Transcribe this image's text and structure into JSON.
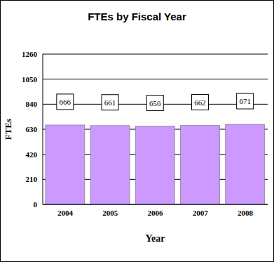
{
  "chart_data": {
    "type": "bar",
    "title": "FTEs by Fiscal Year",
    "x_label": "Year",
    "y_label": "FTEs",
    "categories": [
      "2004",
      "2005",
      "2006",
      "2007",
      "2008"
    ],
    "values": [
      666,
      661,
      656,
      662,
      671
    ],
    "color": "#cc99ff",
    "ylim": [
      0,
      1260
    ],
    "yticks": [
      0,
      210,
      420,
      630,
      840,
      1050,
      1260
    ],
    "grid": true,
    "data_labels": true
  }
}
